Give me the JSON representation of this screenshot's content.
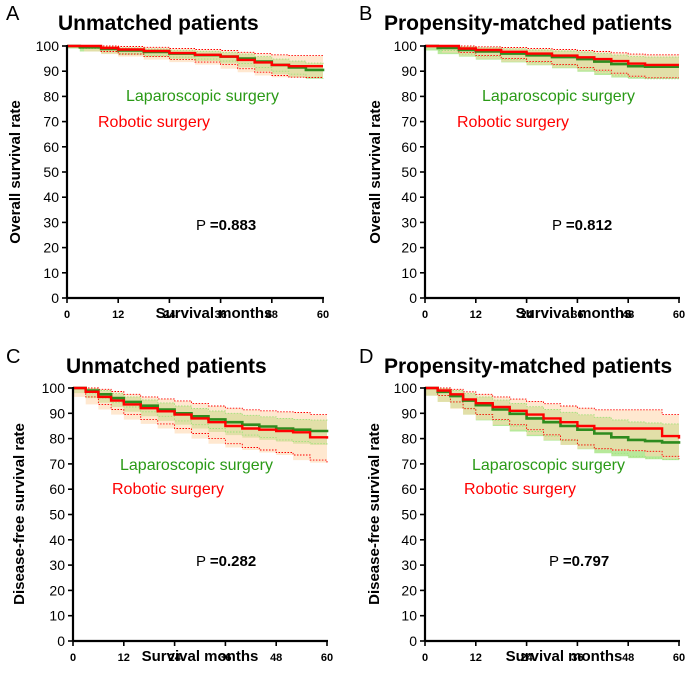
{
  "colors": {
    "lap_line": "#2e8b1e",
    "lap_band": "#9fe27a",
    "lap_text": "#2a9a16",
    "rob_line": "#ff0000",
    "rob_band": "#ffd8b0",
    "rob_text": "#ff0000",
    "axis": "#000000"
  },
  "chart_data": [
    {
      "panel": "A",
      "type": "line",
      "title": "Unmatched patients",
      "xlabel": "Survival months",
      "ylabel": "Overall survival rate",
      "xticks": [
        "0",
        "12",
        "24",
        "36",
        "48",
        "60"
      ],
      "yticks": [
        "0",
        "10",
        "20",
        "30",
        "40",
        "50",
        "60",
        "70",
        "80",
        "90",
        "100"
      ],
      "xlim": [
        0,
        60
      ],
      "ylim": [
        0,
        100
      ],
      "p_prefix": "P",
      "p_value": "=0.883",
      "series": [
        {
          "name": "Laparoscopic surgery",
          "x": [
            0,
            3,
            8,
            12,
            18,
            24,
            30,
            36,
            40,
            44,
            48,
            52,
            56,
            60
          ],
          "y": [
            100,
            99.5,
            98.8,
            98.2,
            97.6,
            97,
            96.4,
            95.8,
            95,
            93.8,
            92.5,
            91.5,
            90.5,
            90
          ],
          "lower": [
            100,
            99,
            97.8,
            97,
            96.3,
            95.6,
            94.8,
            94,
            93,
            91.5,
            90,
            88.8,
            87.6,
            87
          ],
          "upper": [
            100,
            100,
            99.6,
            99.2,
            98.8,
            98.3,
            97.9,
            97.4,
            96.8,
            95.8,
            94.8,
            94,
            93.2,
            92.8
          ]
        },
        {
          "name": "Robotic surgery",
          "x": [
            0,
            4,
            8,
            12,
            18,
            24,
            30,
            36,
            40,
            44,
            48,
            52,
            56,
            60
          ],
          "y": [
            100,
            100,
            99.2,
            98.6,
            98,
            97.2,
            96.5,
            95.8,
            94.5,
            93.5,
            92.5,
            92,
            92,
            92
          ],
          "lower": [
            100,
            99.5,
            97.8,
            96.8,
            95.8,
            94.6,
            93.6,
            92.6,
            91,
            89.6,
            88.3,
            87.6,
            87.5,
            87.5
          ],
          "upper": [
            100,
            100,
            100,
            99.8,
            99.5,
            99,
            98.6,
            98.2,
            97.5,
            97,
            96.5,
            96.2,
            96.2,
            96.2
          ]
        }
      ]
    },
    {
      "panel": "B",
      "type": "line",
      "title": "Propensity-matched patients",
      "xlabel": "Survival months",
      "ylabel": "Overall survival rate",
      "xticks": [
        "0",
        "12",
        "24",
        "36",
        "48",
        "60"
      ],
      "yticks": [
        "0",
        "10",
        "20",
        "30",
        "40",
        "50",
        "60",
        "70",
        "80",
        "90",
        "100"
      ],
      "xlim": [
        0,
        60
      ],
      "ylim": [
        0,
        100
      ],
      "p_prefix": "P",
      "p_value": "=0.812",
      "series": [
        {
          "name": "Laparoscopic surgery",
          "x": [
            0,
            3,
            8,
            12,
            18,
            24,
            30,
            36,
            40,
            44,
            48,
            52,
            56,
            60
          ],
          "y": [
            100,
            99.2,
            98.4,
            97.8,
            97,
            96.3,
            95.6,
            94.8,
            93.8,
            92.8,
            92,
            91.8,
            91.8,
            91.8
          ],
          "lower": [
            100,
            98.2,
            96.8,
            95.8,
            94.6,
            93.5,
            92.4,
            91.2,
            89.8,
            88.5,
            87.5,
            87,
            87,
            87
          ],
          "upper": [
            100,
            100,
            99.6,
            99.3,
            98.9,
            98.4,
            98,
            97.6,
            97,
            96.4,
            95.8,
            95.6,
            95.6,
            95.6
          ]
        },
        {
          "name": "Robotic surgery",
          "x": [
            0,
            4,
            8,
            12,
            18,
            24,
            30,
            36,
            40,
            44,
            48,
            52,
            56,
            60
          ],
          "y": [
            100,
            100,
            99,
            98.4,
            97.7,
            97,
            96.2,
            95.5,
            94.8,
            94,
            93,
            92.5,
            92.5,
            92.5
          ],
          "lower": [
            100,
            99.2,
            97.4,
            96.2,
            95,
            93.8,
            92.6,
            91.5,
            90.4,
            89.2,
            88,
            87.4,
            87.4,
            87.4
          ],
          "upper": [
            100,
            100,
            100,
            99.7,
            99.4,
            99,
            98.6,
            98.2,
            97.8,
            97.3,
            96.8,
            96.5,
            96.5,
            96.5
          ]
        }
      ]
    },
    {
      "panel": "C",
      "type": "line",
      "title": "Unmatched patients",
      "xlabel": "Survival months",
      "ylabel": "Disease-free survival rate",
      "xticks": [
        "0",
        "12",
        "24",
        "36",
        "48",
        "60"
      ],
      "yticks": [
        "0",
        "10",
        "20",
        "30",
        "40",
        "50",
        "60",
        "70",
        "80",
        "90",
        "100"
      ],
      "xlim": [
        0,
        60
      ],
      "ylim": [
        0,
        100
      ],
      "p_prefix": "P",
      "p_value": "=0.282",
      "series": [
        {
          "name": "Laparoscopic surgery",
          "x": [
            0,
            3,
            6,
            9,
            12,
            16,
            20,
            24,
            28,
            32,
            36,
            40,
            44,
            48,
            52,
            56,
            60
          ],
          "y": [
            100,
            99,
            97.5,
            96,
            94.5,
            93,
            91.5,
            90,
            88.8,
            87.6,
            86.5,
            85.5,
            84.8,
            84,
            83.5,
            83,
            82.5
          ],
          "lower": [
            100,
            98,
            96,
            94.2,
            92.5,
            90.6,
            88.8,
            87,
            85.5,
            84,
            82.6,
            81.4,
            80.4,
            79.5,
            78.8,
            78,
            77.5
          ],
          "upper": [
            100,
            100,
            99,
            97.8,
            96.5,
            95.3,
            94.1,
            92.9,
            91.9,
            90.9,
            90,
            89.2,
            88.6,
            88,
            87.6,
            87.3,
            87
          ]
        },
        {
          "name": "Robotic surgery",
          "x": [
            0,
            3,
            6,
            9,
            12,
            16,
            20,
            24,
            28,
            32,
            36,
            40,
            44,
            48,
            52,
            56,
            60
          ],
          "y": [
            100,
            98.5,
            96.5,
            95,
            93.5,
            92,
            90.8,
            89.5,
            88,
            86.5,
            85,
            84,
            83.5,
            83,
            82.5,
            80.5,
            80
          ],
          "lower": [
            100,
            96.5,
            93.5,
            91.5,
            89.5,
            87.5,
            85.8,
            84,
            82,
            80,
            78,
            76.5,
            75.5,
            74.5,
            73.5,
            71.5,
            70.5
          ],
          "upper": [
            100,
            100,
            99.5,
            98.6,
            97.5,
            96.5,
            95.7,
            94.9,
            93.9,
            92.9,
            92,
            91.4,
            91,
            90.6,
            90.3,
            89.5,
            89
          ]
        }
      ]
    },
    {
      "panel": "D",
      "type": "line",
      "title": "Propensity-matched patients",
      "xlabel": "Survival months",
      "ylabel": "Disease-free survival rate",
      "xticks": [
        "0",
        "12",
        "24",
        "36",
        "48",
        "60"
      ],
      "yticks": [
        "0",
        "10",
        "20",
        "30",
        "40",
        "50",
        "60",
        "70",
        "80",
        "90",
        "100"
      ],
      "xlim": [
        0,
        60
      ],
      "ylim": [
        0,
        100
      ],
      "p_prefix": "P",
      "p_value": "=0.797",
      "series": [
        {
          "name": "Laparoscopic surgery",
          "x": [
            0,
            3,
            6,
            9,
            12,
            16,
            20,
            24,
            28,
            32,
            36,
            40,
            44,
            48,
            52,
            56,
            60
          ],
          "y": [
            100,
            98.5,
            96.8,
            95,
            93.2,
            91.5,
            89.8,
            88,
            86.5,
            85,
            83.5,
            82,
            80.5,
            79.5,
            79,
            78.5,
            78
          ],
          "lower": [
            100,
            97,
            94.5,
            92,
            89.5,
            87.2,
            85,
            82.8,
            81,
            79.2,
            77.5,
            75.8,
            74.2,
            73,
            72.3,
            71.8,
            71.5
          ],
          "upper": [
            100,
            100,
            99,
            97.8,
            96.5,
            95.2,
            93.9,
            92.6,
            91.5,
            90.4,
            89.4,
            88.4,
            87.4,
            86.6,
            86.2,
            85.8,
            85.5
          ]
        },
        {
          "name": "Robotic surgery",
          "x": [
            0,
            3,
            6,
            9,
            12,
            16,
            20,
            24,
            28,
            32,
            36,
            40,
            44,
            48,
            52,
            56,
            60
          ],
          "y": [
            100,
            99,
            97.5,
            95.5,
            94,
            92.5,
            91,
            89.5,
            88,
            86.5,
            85,
            84,
            84,
            84,
            84,
            81,
            80
          ],
          "lower": [
            100,
            97,
            94.5,
            91.8,
            89.5,
            87.5,
            85.5,
            83.5,
            81.5,
            79.5,
            77.5,
            76,
            75.5,
            75.2,
            75,
            73,
            72
          ],
          "upper": [
            100,
            100,
            99.5,
            98.5,
            97.5,
            96.5,
            95.6,
            94.7,
            93.8,
            92.9,
            92,
            91.4,
            91.4,
            91.4,
            91.4,
            89.5,
            89
          ]
        }
      ]
    }
  ]
}
